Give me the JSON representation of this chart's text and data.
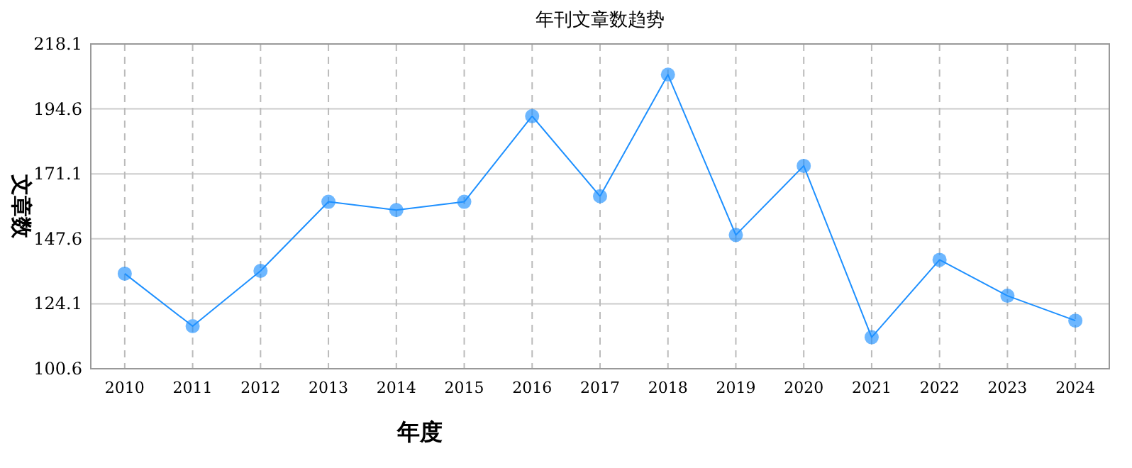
{
  "chart_data": {
    "type": "line",
    "title": "年刊文章数趋势",
    "xlabel": "年度",
    "ylabel": "文章数",
    "categories": [
      "2010",
      "2011",
      "2012",
      "2013",
      "2014",
      "2015",
      "2016",
      "2017",
      "2018",
      "2019",
      "2020",
      "2021",
      "2022",
      "2023",
      "2024"
    ],
    "series": [
      {
        "color": "#1e90ff",
        "values": [
          135,
          116,
          136,
          161,
          158,
          161,
          192,
          163,
          207,
          149,
          174,
          112,
          140,
          127,
          118
        ]
      }
    ],
    "ylim": [
      100.6,
      218.1
    ],
    "yticks": [
      100.6,
      124.1,
      147.6,
      171.1,
      194.6,
      218.1
    ],
    "grid": true,
    "marker": "circle",
    "line_style": "solid"
  }
}
